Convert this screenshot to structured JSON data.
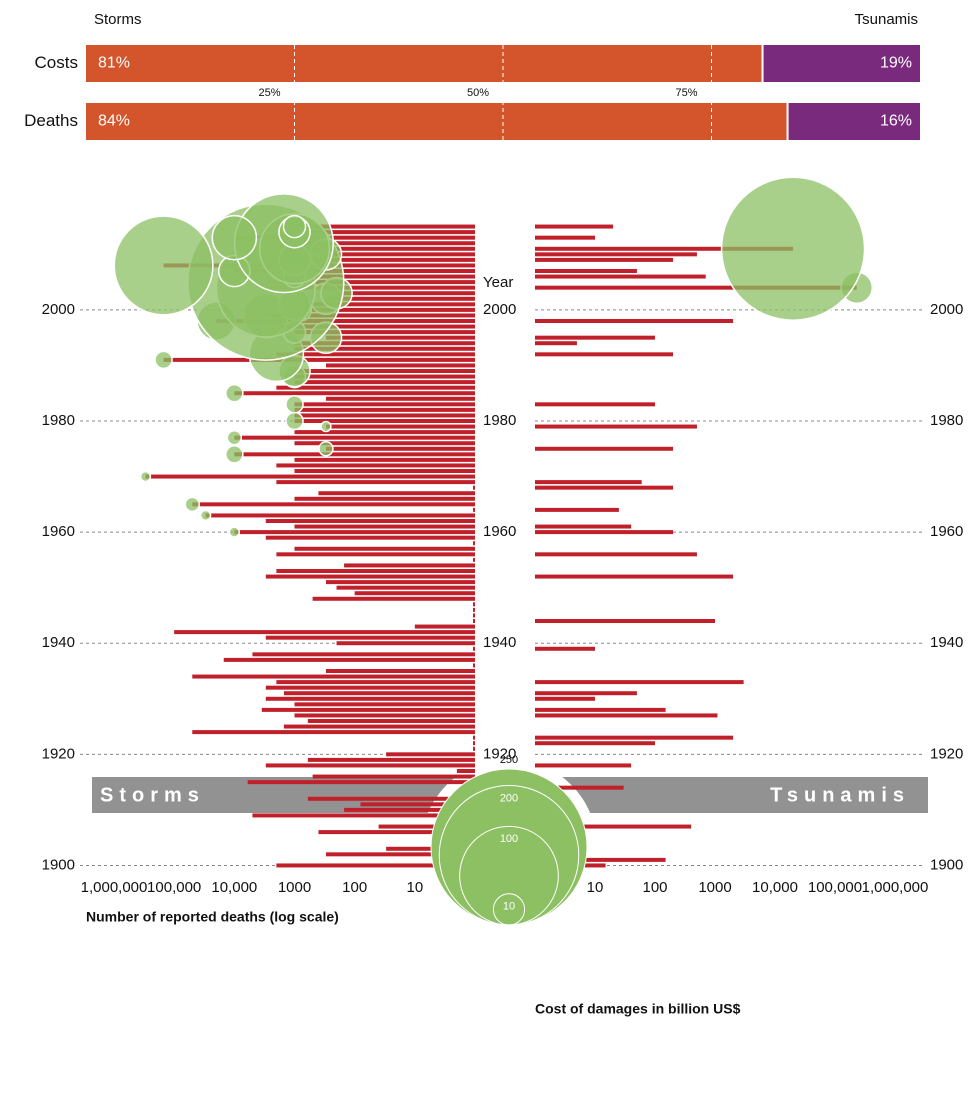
{
  "chart_data": [
    {
      "type": "stacked-hbar",
      "categories": [
        "Costs",
        "Deaths"
      ],
      "series": [
        {
          "name": "Storms",
          "color": "#d4552b",
          "values": [
            81,
            84
          ],
          "value_labels": [
            "81%",
            "84%"
          ]
        },
        {
          "name": "Tsunamis",
          "color": "#7a2a7c",
          "values": [
            19,
            16
          ],
          "value_labels": [
            "19%",
            "16%"
          ]
        }
      ],
      "xlim": [
        0,
        100
      ],
      "xticks": [
        {
          "value": 25,
          "label": "25%"
        },
        {
          "value": 50,
          "label": "50%"
        },
        {
          "value": 75,
          "label": "75%"
        }
      ]
    },
    {
      "type": "mirror-log-bar",
      "x_label": "Year",
      "y_label": "Number of reported deaths (log scale)",
      "size_label": "Cost of damages in billion US$",
      "x": [
        1900,
        1901,
        1902,
        1903,
        1904,
        1905,
        1906,
        1907,
        1908,
        1909,
        1910,
        1911,
        1912,
        1913,
        1914,
        1915,
        1916,
        1917,
        1918,
        1919,
        1920,
        1921,
        1922,
        1923,
        1924,
        1925,
        1926,
        1927,
        1928,
        1929,
        1930,
        1931,
        1932,
        1933,
        1934,
        1935,
        1936,
        1937,
        1938,
        1939,
        1940,
        1941,
        1942,
        1943,
        1944,
        1945,
        1946,
        1947,
        1948,
        1949,
        1950,
        1951,
        1952,
        1953,
        1954,
        1955,
        1956,
        1957,
        1958,
        1959,
        1960,
        1961,
        1962,
        1963,
        1964,
        1965,
        1966,
        1967,
        1968,
        1969,
        1970,
        1971,
        1972,
        1973,
        1974,
        1975,
        1976,
        1977,
        1978,
        1979,
        1980,
        1981,
        1982,
        1983,
        1984,
        1985,
        1986,
        1987,
        1988,
        1989,
        1990,
        1991,
        1992,
        1993,
        1994,
        1995,
        1996,
        1997,
        1998,
        1999,
        2000,
        2001,
        2002,
        2003,
        2004,
        2005,
        2006,
        2007,
        2008,
        2009,
        2010,
        2011,
        2012,
        2013,
        2014,
        2015
      ],
      "xlim": [
        1899,
        2016
      ],
      "xticks": [
        1900,
        1920,
        1940,
        1960,
        1980,
        2000
      ],
      "ylim": [
        1,
        1000000
      ],
      "yticks": [
        {
          "value": 1000000,
          "label": "1,000,000"
        },
        {
          "value": 100000,
          "label": "100,000"
        },
        {
          "value": 10000,
          "label": "10,000"
        },
        1000,
        100,
        10,
        1
      ],
      "log_y": true,
      "grid": true,
      "sizelim": [
        0,
        250
      ],
      "size_ticks": [
        250,
        200,
        100,
        10
      ],
      "size_color": "#8cc063",
      "series": [
        {
          "name": "Storms",
          "color": "#c0202a",
          "values": [
            2000,
            1,
            300,
            30,
            3,
            1,
            400,
            40,
            1,
            5000,
            150,
            80,
            600,
            1,
            1,
            6000,
            500,
            2,
            3000,
            600,
            30,
            1,
            1,
            1,
            50000,
            1500,
            600,
            1000,
            3500,
            1000,
            3000,
            1500,
            3000,
            2000,
            50000,
            300,
            1,
            15000,
            5000,
            1,
            200,
            3000,
            100000,
            10,
            1,
            1,
            1,
            1,
            500,
            100,
            200,
            300,
            3000,
            2000,
            150,
            1,
            2000,
            1000,
            1,
            3000,
            10000,
            1000,
            3000,
            30000,
            1,
            50000,
            1000,
            400,
            1,
            2000,
            300000,
            1000,
            2000,
            1000,
            10000,
            300,
            1000,
            10000,
            1000,
            300,
            1000,
            1000,
            1000,
            1000,
            300,
            10000,
            2000,
            1000,
            1000,
            1000,
            300,
            150000,
            2000,
            1000,
            1000,
            300,
            1000,
            2000,
            20000,
            3000,
            800,
            1000,
            300,
            200,
            3000,
            3000,
            1000,
            10000,
            150000,
            1000,
            300,
            1000,
            1500,
            10000,
            1000,
            1000
          ],
          "sizes": [
            null,
            null,
            null,
            null,
            null,
            null,
            null,
            null,
            null,
            null,
            null,
            null,
            null,
            null,
            null,
            null,
            null,
            null,
            null,
            null,
            null,
            null,
            null,
            null,
            null,
            null,
            null,
            null,
            null,
            null,
            null,
            null,
            null,
            null,
            null,
            null,
            null,
            null,
            null,
            null,
            null,
            null,
            null,
            null,
            null,
            null,
            null,
            null,
            null,
            null,
            null,
            null,
            null,
            null,
            null,
            null,
            null,
            null,
            null,
            null,
            1,
            null,
            null,
            1,
            null,
            2,
            null,
            null,
            null,
            null,
            1,
            null,
            null,
            null,
            3,
            2,
            null,
            2,
            null,
            1,
            3,
            null,
            null,
            3,
            null,
            3,
            null,
            null,
            5,
            10,
            null,
            3,
            30,
            null,
            null,
            10,
            5,
            null,
            15,
            20,
            5,
            10,
            10,
            10,
            100,
            250,
            5,
            10,
            100,
            10,
            10,
            50,
            100,
            20,
            10,
            5
          ]
        },
        {
          "name": "Tsunamis",
          "color": "#c0202a",
          "values": [
            15,
            150,
            null,
            null,
            null,
            null,
            null,
            400,
            null,
            null,
            null,
            null,
            null,
            null,
            30,
            null,
            null,
            null,
            40,
            null,
            null,
            null,
            100,
            2000,
            null,
            null,
            null,
            1100,
            150,
            null,
            10,
            50,
            null,
            3000,
            null,
            null,
            null,
            null,
            null,
            10,
            null,
            null,
            null,
            null,
            1000,
            null,
            null,
            null,
            null,
            null,
            null,
            null,
            2000,
            null,
            null,
            null,
            500,
            null,
            null,
            null,
            200,
            40,
            null,
            null,
            25,
            null,
            null,
            null,
            200,
            60,
            null,
            null,
            null,
            null,
            null,
            200,
            null,
            null,
            null,
            500,
            null,
            null,
            null,
            100,
            null,
            null,
            null,
            null,
            null,
            null,
            null,
            null,
            200,
            null,
            5,
            100,
            null,
            null,
            2000,
            null,
            null,
            null,
            null,
            null,
            230000,
            null,
            700,
            50,
            null,
            200,
            500,
            20000,
            null,
            10,
            null,
            20
          ],
          "sizes": [
            null,
            null,
            null,
            null,
            null,
            null,
            null,
            null,
            null,
            null,
            null,
            null,
            null,
            null,
            null,
            null,
            null,
            null,
            null,
            null,
            null,
            null,
            null,
            null,
            null,
            null,
            null,
            null,
            null,
            null,
            null,
            null,
            null,
            null,
            null,
            null,
            null,
            null,
            null,
            null,
            null,
            null,
            null,
            null,
            null,
            null,
            null,
            null,
            null,
            null,
            null,
            null,
            null,
            null,
            null,
            null,
            null,
            null,
            null,
            null,
            null,
            null,
            null,
            null,
            null,
            null,
            null,
            null,
            null,
            null,
            null,
            null,
            null,
            null,
            null,
            null,
            null,
            null,
            null,
            null,
            null,
            null,
            null,
            null,
            null,
            null,
            null,
            null,
            null,
            null,
            null,
            null,
            null,
            null,
            null,
            null,
            null,
            null,
            null,
            null,
            null,
            null,
            null,
            null,
            10,
            null,
            null,
            null,
            null,
            null,
            null,
            210,
            null,
            null,
            null,
            null
          ]
        }
      ]
    }
  ]
}
